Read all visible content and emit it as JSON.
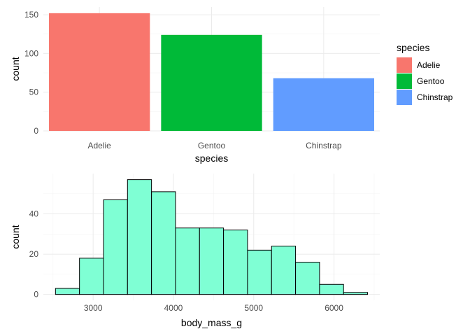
{
  "chart_data": [
    {
      "type": "bar",
      "categories": [
        "Adelie",
        "Gentoo",
        "Chinstrap"
      ],
      "values": [
        152,
        124,
        68
      ],
      "colors": [
        "#F8766D",
        "#00BA38",
        "#619CFF"
      ],
      "xlabel": "species",
      "ylabel": "count",
      "ylim": [
        0,
        160
      ],
      "yticks": [
        0,
        50,
        100,
        150
      ],
      "grid": true,
      "legend": {
        "title": "species",
        "placement": "right",
        "entries": [
          "Adelie",
          "Gentoo",
          "Chinstrap"
        ]
      }
    },
    {
      "type": "histogram",
      "bins": [
        {
          "x0": 2531,
          "x1": 2830,
          "count": 3
        },
        {
          "x0": 2830,
          "x1": 3129,
          "count": 18
        },
        {
          "x0": 3129,
          "x1": 3428,
          "count": 47
        },
        {
          "x0": 3428,
          "x1": 3727,
          "count": 57
        },
        {
          "x0": 3727,
          "x1": 4026,
          "count": 51
        },
        {
          "x0": 4026,
          "x1": 4325,
          "count": 33
        },
        {
          "x0": 4325,
          "x1": 4624,
          "count": 33
        },
        {
          "x0": 4624,
          "x1": 4923,
          "count": 32
        },
        {
          "x0": 4923,
          "x1": 5222,
          "count": 22
        },
        {
          "x0": 5222,
          "x1": 5521,
          "count": 24
        },
        {
          "x0": 5521,
          "x1": 5820,
          "count": 16
        },
        {
          "x0": 5820,
          "x1": 6119,
          "count": 5
        },
        {
          "x0": 6119,
          "x1": 6418,
          "count": 1
        }
      ],
      "fill": "#7FFFD4",
      "outline": "#000000",
      "xlabel": "body_mass_g",
      "ylabel": "count",
      "xlim": [
        2380,
        6570
      ],
      "ylim": [
        -2.9,
        60
      ],
      "xticks": [
        3000,
        4000,
        5000,
        6000
      ],
      "yticks": [
        0,
        20,
        40
      ],
      "grid": true
    }
  ]
}
